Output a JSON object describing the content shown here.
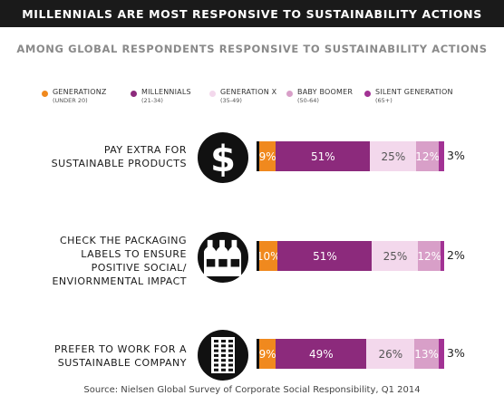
{
  "header": {
    "title": "MILLENNIALS ARE MOST RESPONSIVE TO SUSTAINABILITY ACTIONS"
  },
  "subheader": {
    "text": "AMONG GLOBAL RESPONDENTS RESPONSIVE TO SUSTAINABILITY ACTIONS"
  },
  "colors": {
    "generation_z": "#f0891e",
    "millennials": "#8c2a7c",
    "generation_x": "#f3d8ec",
    "baby_boomer": "#d89fc8",
    "silent_generation": "#a23294",
    "icon_bg": "#111111",
    "title_bg": "#1a1a1a"
  },
  "legend": [
    {
      "key": "generation_z",
      "name": "GENERATIONZ",
      "range": "(UNDER 20)"
    },
    {
      "key": "millennials",
      "name": "MILLENNIALS",
      "range": "(21-34)"
    },
    {
      "key": "generation_x",
      "name": "GENERATION X",
      "range": "(35-49)"
    },
    {
      "key": "baby_boomer",
      "name": "BABY BOOMER",
      "range": "(50-64)"
    },
    {
      "key": "silent_generation",
      "name": "SILENT GENERATION",
      "range": "(65+)"
    }
  ],
  "chart_data": {
    "type": "bar",
    "orientation": "horizontal",
    "stacked": true,
    "title": "MILLENNIALS ARE MOST RESPONSIVE TO SUSTAINABILITY ACTIONS",
    "subtitle": "AMONG GLOBAL RESPONDENTS RESPONSIVE TO SUSTAINABILITY ACTIONS",
    "unit": "%",
    "categories": [
      "PAY EXTRA FOR\nSUSTAINABLE PRODUCTS",
      "CHECK THE PACKAGING\nLABELS TO ENSURE\nPOSITIVE SOCIAL/\nENVIORNMENTAL IMPACT",
      "PREFER TO WORK FOR A\nSUSTAINABLE COMPANY"
    ],
    "icons": [
      "dollar-icon",
      "bottles-icon",
      "building-icon"
    ],
    "series": [
      {
        "name": "GENERATIONZ",
        "values": [
          9,
          10,
          9
        ],
        "labels": [
          "9%",
          "10%",
          "9%"
        ]
      },
      {
        "name": "MILLENNIALS",
        "values": [
          51,
          51,
          49
        ],
        "labels": [
          "51%",
          "51%",
          "49%"
        ]
      },
      {
        "name": "GENERATION X",
        "values": [
          25,
          25,
          26
        ],
        "labels": [
          "25%",
          "25%",
          "26%"
        ]
      },
      {
        "name": "BABY BOOMER",
        "values": [
          12,
          12,
          13
        ],
        "labels": [
          "12%",
          "12%",
          "13%"
        ]
      },
      {
        "name": "SILENT GENERATION",
        "values": [
          3,
          2,
          3
        ],
        "labels": [
          "3%",
          "2%",
          "3%"
        ]
      }
    ],
    "legend_position": "top",
    "grid": false
  },
  "source": {
    "text": "Source: Nielsen Global Survey of Corporate Social Responsibility, Q1 2014"
  }
}
